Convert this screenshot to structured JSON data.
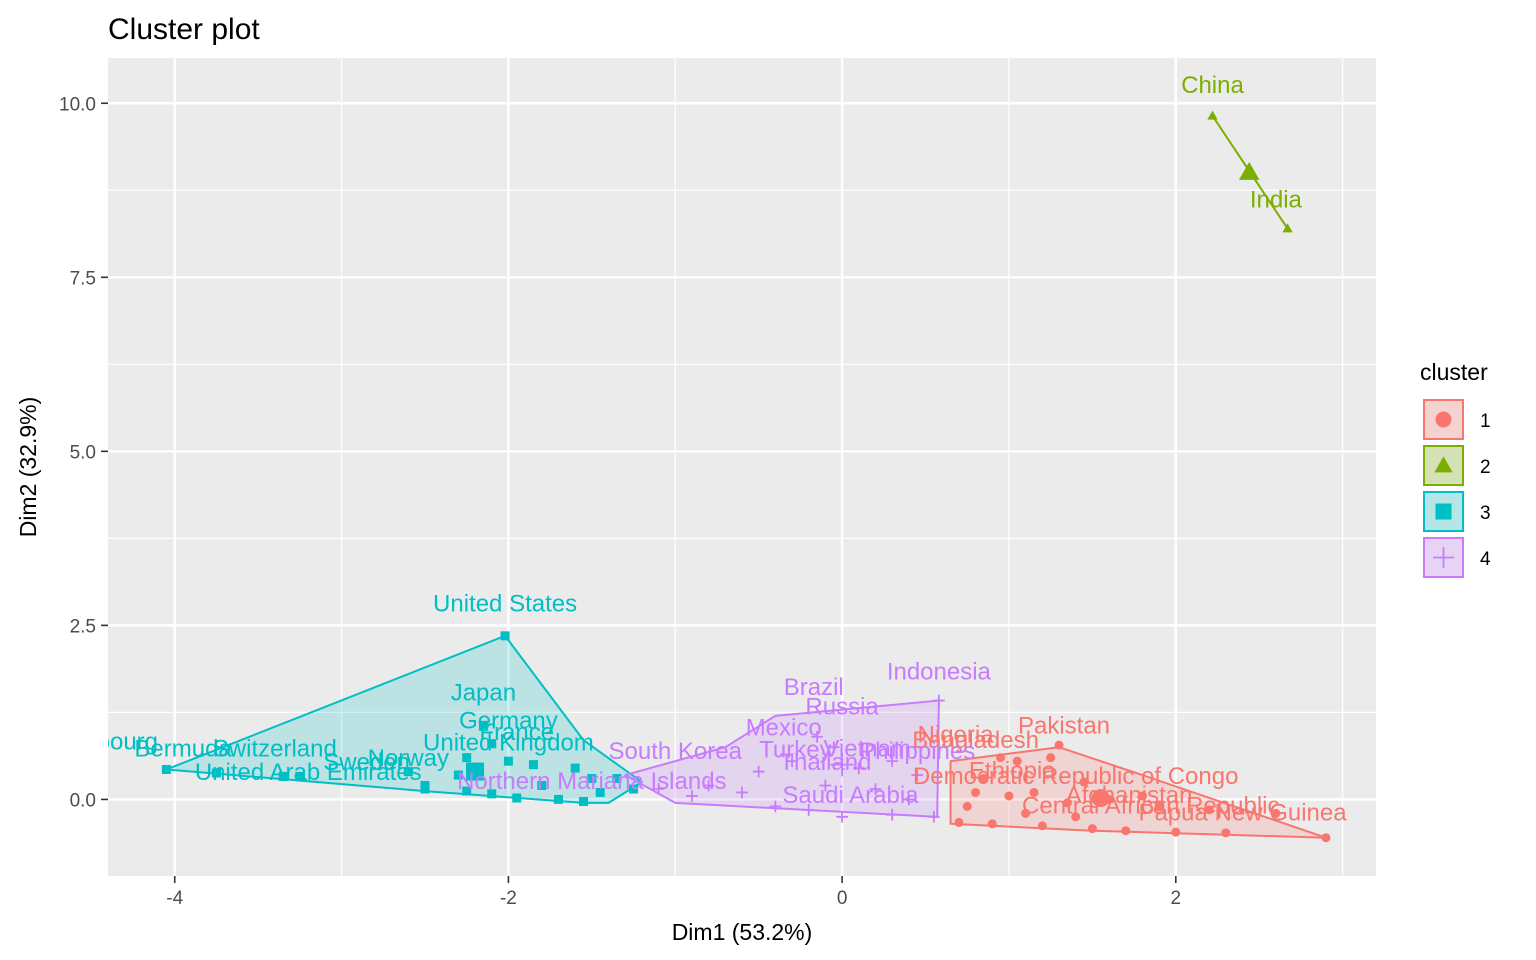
{
  "chart_data": {
    "type": "scatter",
    "title": "Cluster plot",
    "xlabel": "Dim1 (53.2%)",
    "ylabel": "Dim2 (32.9%)",
    "xlim": [
      -4.4,
      3.2
    ],
    "ylim": [
      -1.1,
      10.65
    ],
    "x_ticks": [
      -4,
      -2,
      0,
      2
    ],
    "y_ticks": [
      0.0,
      2.5,
      5.0,
      7.5,
      10.0
    ],
    "x_tick_labels": [
      "-4",
      "-2",
      "0",
      "2"
    ],
    "y_tick_labels": [
      "0.0",
      "2.5",
      "5.0",
      "7.5",
      "10.0"
    ],
    "grid": true,
    "legend": {
      "title": "cluster",
      "position": "right"
    },
    "series": [
      {
        "name": "1",
        "color": "#F8766D",
        "shape": "circle",
        "hull": [
          [
            0.65,
            0.55
          ],
          [
            1.3,
            0.75
          ],
          [
            1.8,
            0.35
          ],
          [
            2.9,
            -0.55
          ],
          [
            1.5,
            -0.45
          ],
          [
            0.65,
            -0.35
          ]
        ],
        "centroid": [
          1.55,
          0.02
        ],
        "points": [
          [
            1.3,
            0.78
          ],
          [
            1.25,
            0.6
          ],
          [
            1.05,
            0.55
          ],
          [
            0.95,
            0.6
          ],
          [
            1.45,
            0.25
          ],
          [
            1.8,
            0.05
          ],
          [
            1.9,
            -0.1
          ],
          [
            2.2,
            -0.15
          ],
          [
            2.6,
            -0.2
          ],
          [
            2.9,
            -0.55
          ],
          [
            2.3,
            -0.48
          ],
          [
            2.0,
            -0.47
          ],
          [
            1.7,
            -0.45
          ],
          [
            1.5,
            -0.42
          ],
          [
            1.2,
            -0.38
          ],
          [
            0.9,
            -0.35
          ],
          [
            0.7,
            -0.33
          ],
          [
            1.0,
            0.05
          ],
          [
            1.15,
            0.1
          ],
          [
            1.35,
            -0.05
          ],
          [
            1.6,
            0.0
          ],
          [
            0.8,
            0.1
          ],
          [
            0.75,
            -0.1
          ],
          [
            1.1,
            -0.2
          ],
          [
            1.4,
            -0.25
          ],
          [
            0.85,
            0.3
          ]
        ],
        "labels": [
          {
            "text": "Pakistan",
            "x": 1.33,
            "y": 0.95
          },
          {
            "text": "Nigeria",
            "x": 0.68,
            "y": 0.82
          },
          {
            "text": "Bangladesh",
            "x": 0.8,
            "y": 0.74
          },
          {
            "text": "Ethiopia",
            "x": 1.02,
            "y": 0.3
          },
          {
            "text": "Democratic Republic of Congo",
            "x": 1.4,
            "y": 0.22
          },
          {
            "text": "Afghanistan",
            "x": 1.72,
            "y": -0.05
          },
          {
            "text": "Central African Republic",
            "x": 1.85,
            "y": -0.2
          },
          {
            "text": "Papua New Guinea",
            "x": 2.4,
            "y": -0.3
          }
        ]
      },
      {
        "name": "2",
        "color": "#7CAE00",
        "shape": "triangle",
        "hull": [
          [
            2.22,
            9.82
          ],
          [
            2.67,
            8.2
          ]
        ],
        "centroid": [
          2.44,
          9.01
        ],
        "points": [
          [
            2.22,
            9.82
          ],
          [
            2.67,
            8.2
          ]
        ],
        "labels": [
          {
            "text": "China",
            "x": 2.22,
            "y": 10.15
          },
          {
            "text": "India",
            "x": 2.6,
            "y": 8.5
          }
        ]
      },
      {
        "name": "3",
        "color": "#00BFC4",
        "shape": "square",
        "hull": [
          [
            -4.05,
            0.43
          ],
          [
            -2.02,
            2.35
          ],
          [
            -1.55,
            0.85
          ],
          [
            -1.2,
            0.25
          ],
          [
            -1.4,
            -0.05
          ],
          [
            -1.55,
            -0.05
          ],
          [
            -2.5,
            0.12
          ],
          [
            -3.75,
            0.37
          ]
        ],
        "centroid": [
          -2.2,
          0.4
        ],
        "points": [
          [
            -4.05,
            0.43
          ],
          [
            -3.75,
            0.38
          ],
          [
            -3.35,
            0.33
          ],
          [
            -3.25,
            0.33
          ],
          [
            -2.02,
            2.35
          ],
          [
            -2.15,
            1.05
          ],
          [
            -2.1,
            0.8
          ],
          [
            -2.25,
            0.6
          ],
          [
            -2.0,
            0.55
          ],
          [
            -1.85,
            0.5
          ],
          [
            -1.6,
            0.45
          ],
          [
            -1.5,
            0.3
          ],
          [
            -1.35,
            0.3
          ],
          [
            -2.5,
            0.15
          ],
          [
            -2.5,
            0.2
          ],
          [
            -2.25,
            0.12
          ],
          [
            -2.1,
            0.08
          ],
          [
            -1.95,
            0.02
          ],
          [
            -1.7,
            0.0
          ],
          [
            -1.55,
            -0.03
          ],
          [
            -1.8,
            0.2
          ],
          [
            -2.3,
            0.35
          ],
          [
            -2.6,
            0.4
          ],
          [
            -1.45,
            0.1
          ],
          [
            -1.25,
            0.15
          ]
        ],
        "labels": [
          {
            "text": "United States",
            "x": -2.02,
            "y": 2.7
          },
          {
            "text": "Japan",
            "x": -2.15,
            "y": 1.42
          },
          {
            "text": "Germany",
            "x": -2.0,
            "y": 1.02
          },
          {
            "text": "France",
            "x": -1.95,
            "y": 0.85
          },
          {
            "text": "United Kingdom",
            "x": -2.0,
            "y": 0.7
          },
          {
            "text": "Luxembourg",
            "x": -4.5,
            "y": 0.72
          },
          {
            "text": "Bermuda",
            "x": -3.95,
            "y": 0.62
          },
          {
            "text": "Switzerland",
            "x": -3.4,
            "y": 0.62
          },
          {
            "text": "United Arab Emirates",
            "x": -3.2,
            "y": 0.28
          },
          {
            "text": "Sweden",
            "x": -2.85,
            "y": 0.42
          },
          {
            "text": "Norway",
            "x": -2.6,
            "y": 0.48
          }
        ]
      },
      {
        "name": "4",
        "color": "#C77CFF",
        "shape": "plus",
        "hull": [
          [
            -1.3,
            0.35
          ],
          [
            -0.7,
            0.75
          ],
          [
            -0.4,
            1.2
          ],
          [
            0.58,
            1.42
          ],
          [
            0.57,
            -0.25
          ],
          [
            -1.0,
            -0.05
          ]
        ],
        "centroid": [
          0.0,
          0.5
        ],
        "points": [
          [
            0.58,
            1.42
          ],
          [
            -0.05,
            0.75
          ],
          [
            -0.15,
            0.9
          ],
          [
            -0.3,
            0.55
          ],
          [
            -0.5,
            0.4
          ],
          [
            0.1,
            0.45
          ],
          [
            0.3,
            0.55
          ],
          [
            0.45,
            0.35
          ],
          [
            -0.8,
            0.2
          ],
          [
            -0.6,
            0.1
          ],
          [
            -0.2,
            -0.15
          ],
          [
            0.0,
            -0.25
          ],
          [
            0.3,
            -0.22
          ],
          [
            0.55,
            -0.25
          ],
          [
            -0.9,
            0.05
          ],
          [
            -1.1,
            0.15
          ],
          [
            -0.4,
            -0.1
          ],
          [
            0.2,
            0.15
          ],
          [
            0.4,
            0.0
          ],
          [
            -0.1,
            0.2
          ]
        ],
        "labels": [
          {
            "text": "Indonesia",
            "x": 0.58,
            "y": 1.72
          },
          {
            "text": "Brazil",
            "x": -0.17,
            "y": 1.5
          },
          {
            "text": "Russia",
            "x": 0.0,
            "y": 1.22
          },
          {
            "text": "Mexico",
            "x": -0.35,
            "y": 0.92
          },
          {
            "text": "South Korea",
            "x": -1.0,
            "y": 0.58
          },
          {
            "text": "Turkey",
            "x": -0.28,
            "y": 0.6
          },
          {
            "text": "Vietnam",
            "x": 0.15,
            "y": 0.62
          },
          {
            "text": "Philippines",
            "x": 0.45,
            "y": 0.58
          },
          {
            "text": "Thailand",
            "x": -0.1,
            "y": 0.42
          },
          {
            "text": "Saudi Arabia",
            "x": 0.05,
            "y": -0.05
          },
          {
            "text": "Northern Mariana Islands",
            "x": -1.5,
            "y": 0.15
          }
        ]
      }
    ]
  }
}
